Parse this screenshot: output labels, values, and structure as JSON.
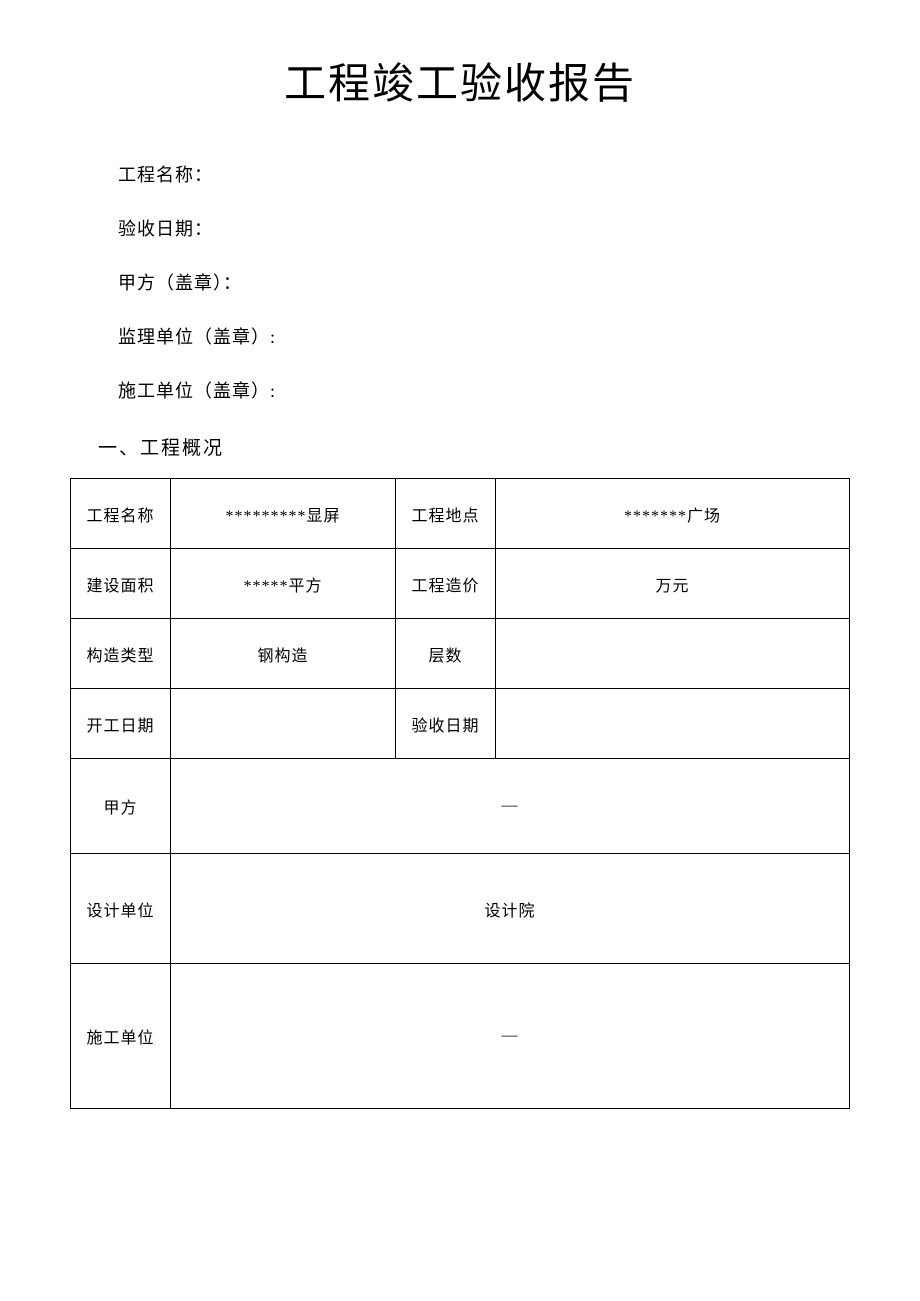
{
  "title": "工程竣工验收报告",
  "infoFields": {
    "projectName": "工程名称：",
    "acceptanceDate": "验收日期：",
    "partyA": "甲方（盖章）：",
    "supervisor": "监理单位（盖章）:",
    "constructor": "施工单位（盖章）:"
  },
  "sectionHeader": "一、工程概况",
  "table": {
    "rows": [
      {
        "label1": "工程名称",
        "value1": "*********显屏",
        "label2": "工程地点",
        "value2": "*******广场"
      },
      {
        "label1": "建设面积",
        "value1": "*****平方",
        "label2": "工程造价",
        "value2": "万元"
      },
      {
        "label1": "构造类型",
        "value1": "钢构造",
        "label2": "层数",
        "value2": ""
      },
      {
        "label1": "开工日期",
        "value1": "",
        "label2": "验收日期",
        "value2": ""
      }
    ],
    "fullRows": [
      {
        "label": "甲方",
        "value": "—"
      },
      {
        "label": "设计单位",
        "value": "设计院"
      },
      {
        "label": "施工单位",
        "value": "—"
      }
    ]
  },
  "styling": {
    "backgroundColor": "#ffffff",
    "textColor": "#000000",
    "borderColor": "#000000",
    "titleFontSize": 42,
    "bodyFontSize": 18,
    "tableFontSize": 16
  }
}
